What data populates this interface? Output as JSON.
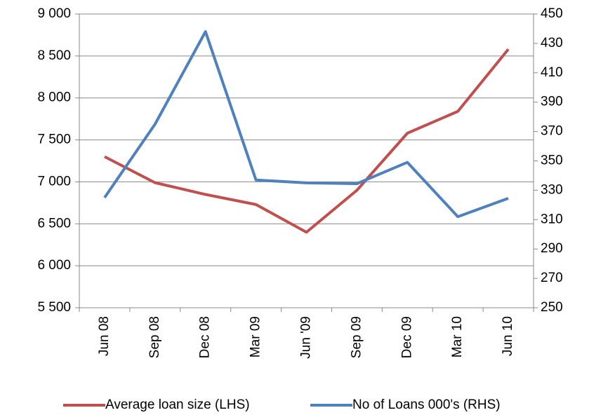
{
  "chart_data": {
    "type": "line",
    "categories": [
      "Jun 08",
      "Sep 08",
      "Dec 08",
      "Mar 09",
      "Jun '09",
      "Sep 09",
      "Dec 09",
      "Mar 10",
      "Jun 10"
    ],
    "series": [
      {
        "name": "Average loan size (LHS)",
        "color": "#c0504d",
        "values": [
          7300,
          6990,
          6850,
          6730,
          6400,
          6900,
          7580,
          7840,
          8580
        ]
      },
      {
        "name": "No of Loans 000's (RHS)",
        "color": "#4f81bd",
        "axis": "y2",
        "values": [
          325,
          375,
          438,
          337,
          335,
          334.5,
          349,
          312,
          324.5
        ]
      }
    ],
    "ylim": [
      5500,
      9000
    ],
    "yticks": [
      {
        "value": 5500,
        "label": "5 500"
      },
      {
        "value": 6000,
        "label": "6 000"
      },
      {
        "value": 6500,
        "label": "6 500"
      },
      {
        "value": 7000,
        "label": "7 000"
      },
      {
        "value": 7500,
        "label": "7 500"
      },
      {
        "value": 8000,
        "label": "8 000"
      },
      {
        "value": 8500,
        "label": "8 500"
      },
      {
        "value": 9000,
        "label": "9 000"
      }
    ],
    "y2lim": [
      250,
      450
    ],
    "y2ticks": [
      250,
      270,
      290,
      310,
      330,
      350,
      370,
      390,
      410,
      430,
      450
    ],
    "grid": true,
    "legend": "bottom"
  }
}
